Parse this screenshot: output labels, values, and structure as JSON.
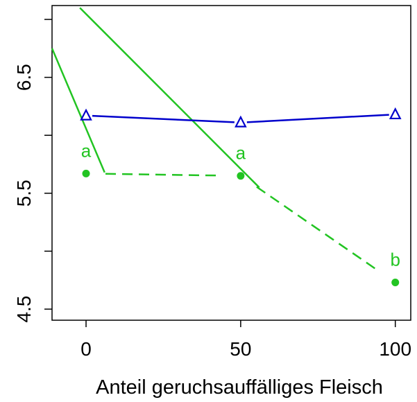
{
  "chart_data": {
    "type": "line",
    "title": "",
    "xlabel": "Anteil geruchsauffälliges Fleisch",
    "ylabel": "",
    "x_ticks": [
      0,
      50,
      100
    ],
    "y_ticks": [
      4.5,
      5.5,
      6.5
    ],
    "xlim": [
      -11,
      105
    ],
    "ylim": [
      4.5,
      7.0
    ],
    "grid": false,
    "series": [
      {
        "color": "#0000cc",
        "marker": "triangle-open",
        "line": "solid",
        "points": [
          {
            "x": 0,
            "y": 6.17
          },
          {
            "x": 50,
            "y": 6.11
          },
          {
            "x": 100,
            "y": 6.18
          }
        ]
      },
      {
        "color": "#22c422",
        "marker": "circle-filled",
        "line": "dashed",
        "points": [
          {
            "x": 0,
            "y": 5.67
          },
          {
            "x": 50,
            "y": 5.65
          },
          {
            "x": 100,
            "y": 4.73
          }
        ],
        "point_labels": [
          "a",
          "a",
          "b"
        ]
      }
    ],
    "reference_lines": [
      {
        "color": "#22c422",
        "points": [
          {
            "x": -11,
            "y": 6.75
          },
          {
            "x": 6,
            "y": 5.68
          }
        ]
      },
      {
        "color": "#22c422",
        "points": [
          {
            "x": -2,
            "y": 7.1
          },
          {
            "x": 56,
            "y": 5.55
          }
        ]
      }
    ]
  }
}
